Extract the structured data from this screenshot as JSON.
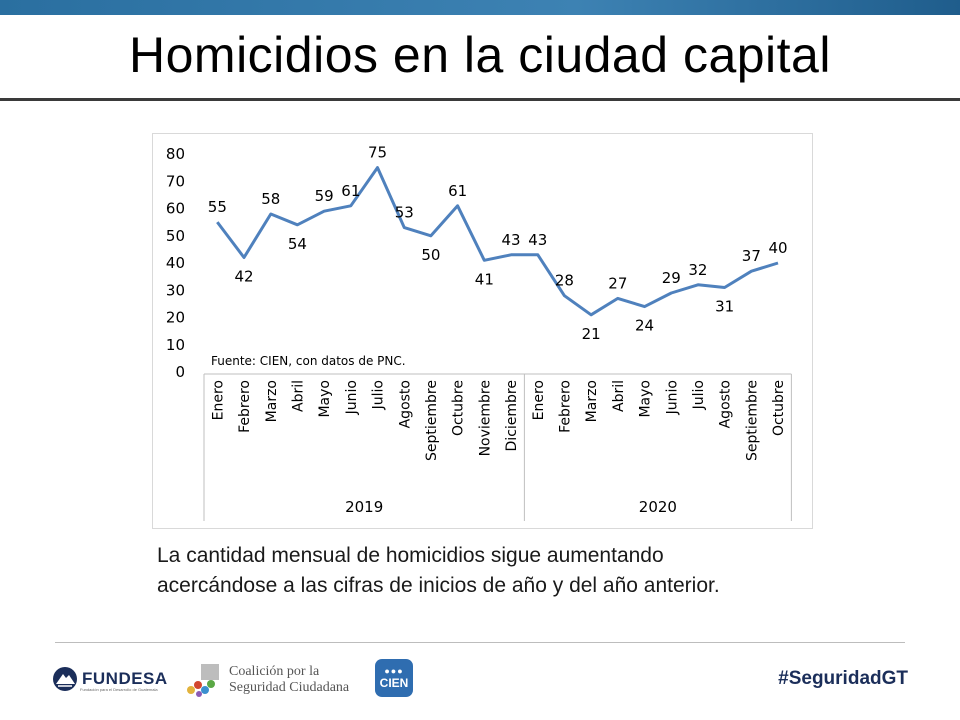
{
  "slide": {
    "title": "Homicidios en la ciudad capital",
    "caption_line1": "La cantidad mensual de homicidios sigue aumentando",
    "caption_line2": "acercándose a las cifras de inicios de año y del año anterior."
  },
  "footer": {
    "fundesa_name": "FUNDESA",
    "fundesa_tagline": "Fundación para el Desarrollo de Guatemala",
    "coalicion_line1": "Coalición por la",
    "coalicion_line2": "Seguridad Ciudadana",
    "cien_label": "CIEN",
    "hashtag": "#SeguridadGT"
  },
  "colors": {
    "line": "#4f81bd",
    "topbar": "#2a6fa0",
    "brand_navy": "#1b2e5a",
    "cien_blue": "#2f6db0"
  },
  "chart_data": {
    "type": "line",
    "title": "",
    "xlabel": "",
    "ylabel": "",
    "ylim": [
      0,
      80
    ],
    "yticks": [
      0,
      10,
      20,
      30,
      40,
      50,
      60,
      70,
      80
    ],
    "source_note": "Fuente: CIEN, con datos de PNC.",
    "groups": [
      {
        "year": "2019",
        "months": [
          "Enero",
          "Febrero",
          "Marzo",
          "Abril",
          "Mayo",
          "Junio",
          "Julio",
          "Agosto",
          "Septiembre",
          "Octubre",
          "Noviembre",
          "Diciembre"
        ],
        "values": [
          55,
          42,
          58,
          54,
          59,
          61,
          75,
          53,
          50,
          61,
          41,
          43
        ]
      },
      {
        "year": "2020",
        "months": [
          "Enero",
          "Febrero",
          "Marzo",
          "Abril",
          "Mayo",
          "Junio",
          "Julio",
          "Agosto",
          "Septiembre",
          "Octubre"
        ],
        "values": [
          43,
          28,
          21,
          27,
          24,
          29,
          32,
          31,
          37,
          40
        ]
      }
    ]
  }
}
